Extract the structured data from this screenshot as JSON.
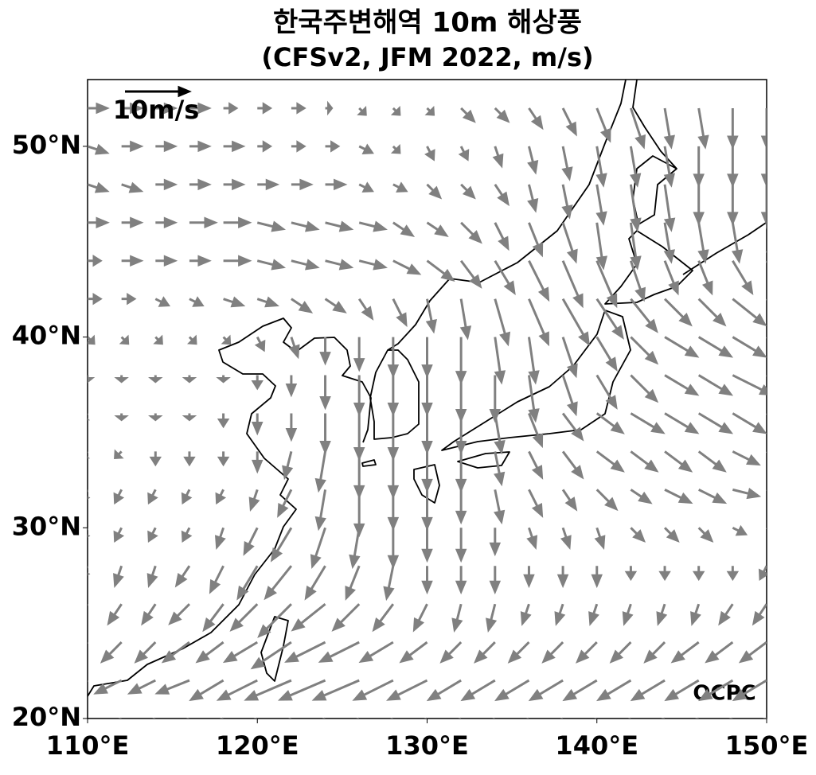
{
  "chart_data": {
    "type": "quiver",
    "title": "한국주변해역 10m 해상풍",
    "subtitle": "(CFSv2, JFM 2022, m/s)",
    "xlim": [
      110,
      150
    ],
    "ylim": [
      20,
      53.5
    ],
    "xticks": [
      {
        "value": 110,
        "label": "110°E"
      },
      {
        "value": 120,
        "label": "120°E"
      },
      {
        "value": 130,
        "label": "130°E"
      },
      {
        "value": 140,
        "label": "140°E"
      },
      {
        "value": 150,
        "label": "150°E"
      }
    ],
    "yticks": [
      {
        "value": 20,
        "label": "20°N"
      },
      {
        "value": 30,
        "label": "30°N"
      },
      {
        "value": 40,
        "label": "40°N"
      },
      {
        "value": 50,
        "label": "50°N"
      }
    ],
    "color": "#808080",
    "key": {
      "value": 10,
      "label": "10m/s"
    },
    "credit": "OCPC",
    "lon": [
      110,
      112,
      114,
      116,
      118,
      120,
      122,
      124,
      126,
      128,
      130,
      132,
      134,
      136,
      138,
      140,
      142,
      144,
      146,
      148,
      150
    ],
    "lat": [
      52,
      50,
      48,
      46,
      44,
      42,
      40,
      38,
      36,
      34,
      32,
      30,
      28,
      26,
      24,
      22,
      20
    ],
    "u": [
      [
        3,
        3,
        3,
        3,
        2,
        2,
        2,
        1,
        1,
        1,
        1,
        2,
        2,
        2,
        2,
        2,
        2,
        1,
        1,
        0,
        0
      ],
      [
        3,
        3,
        3,
        3,
        3,
        2,
        2,
        2,
        2,
        1,
        1,
        1,
        1,
        1,
        1,
        1,
        1,
        1,
        0,
        0,
        0
      ],
      [
        3,
        3,
        3,
        3,
        3,
        3,
        3,
        3,
        2,
        2,
        2,
        2,
        2,
        1,
        1,
        1,
        1,
        1,
        0,
        0,
        0
      ],
      [
        3,
        3,
        3,
        4,
        4,
        4,
        4,
        4,
        4,
        3,
        3,
        3,
        2,
        2,
        2,
        1,
        1,
        1,
        1,
        1,
        1
      ],
      [
        2,
        3,
        3,
        3,
        4,
        4,
        4,
        4,
        4,
        4,
        4,
        3,
        3,
        3,
        3,
        3,
        2,
        2,
        2,
        3,
        3
      ],
      [
        2,
        2,
        2,
        2,
        3,
        3,
        3,
        3,
        2,
        2,
        1,
        1,
        2,
        3,
        4,
        4,
        4,
        4,
        4,
        5,
        5
      ],
      [
        1,
        1,
        1,
        1,
        1,
        1,
        1,
        0,
        0,
        0,
        0,
        0,
        1,
        1,
        2,
        3,
        4,
        5,
        5,
        5,
        5
      ],
      [
        0,
        0,
        0,
        0,
        0,
        0,
        0,
        0,
        0,
        0,
        0,
        0,
        0,
        1,
        2,
        3,
        4,
        5,
        5,
        6,
        6
      ],
      [
        -1,
        0,
        0,
        0,
        0,
        0,
        0,
        0,
        0,
        0,
        0,
        0,
        1,
        2,
        3,
        4,
        5,
        5,
        5,
        5,
        5
      ],
      [
        -1,
        -1,
        0,
        0,
        0,
        0,
        -1,
        -1,
        0,
        0,
        0,
        0,
        1,
        2,
        3,
        4,
        4,
        4,
        4,
        4,
        4
      ],
      [
        -1,
        -1,
        -1,
        -1,
        -1,
        -1,
        -2,
        -1,
        0,
        0,
        0,
        0,
        1,
        2,
        2,
        3,
        3,
        4,
        4,
        4,
        4
      ],
      [
        -1,
        -1,
        -1,
        -1,
        -1,
        -2,
        -3,
        -2,
        -1,
        0,
        0,
        0,
        0,
        1,
        1,
        1,
        2,
        2,
        2,
        2,
        2
      ],
      [
        -1,
        -1,
        -1,
        -2,
        -2,
        -3,
        -4,
        -3,
        -2,
        -1,
        0,
        0,
        0,
        0,
        0,
        0,
        0,
        0,
        0,
        0,
        -1
      ],
      [
        -2,
        -2,
        -2,
        -3,
        -3,
        -4,
        -5,
        -5,
        -4,
        -3,
        -2,
        -1,
        -1,
        -1,
        -1,
        -1,
        -1,
        -1,
        -1,
        -2,
        -2
      ],
      [
        -3,
        -3,
        -3,
        -4,
        -4,
        -5,
        -6,
        -6,
        -6,
        -5,
        -4,
        -3,
        -3,
        -3,
        -3,
        -3,
        -3,
        -3,
        -4,
        -4,
        -4
      ],
      [
        -4,
        -4,
        -4,
        -5,
        -5,
        -6,
        -7,
        -7,
        -7,
        -6,
        -6,
        -5,
        -5,
        -5,
        -5,
        -5,
        -5,
        -5,
        -5,
        -5,
        -5
      ],
      [
        -5,
        -5,
        -5,
        -5,
        -6,
        -6,
        -7,
        -7,
        -7,
        -7,
        -7,
        -6,
        -6,
        -6,
        -6,
        -6,
        -6,
        -6,
        -6,
        -6,
        -6
      ]
    ],
    "v": [
      [
        0,
        0,
        0,
        0,
        0,
        0,
        0,
        0,
        -1,
        -1,
        -1,
        -2,
        -2,
        -3,
        -4,
        -5,
        -6,
        -6,
        -6,
        -6,
        -6
      ],
      [
        -1,
        0,
        0,
        0,
        0,
        0,
        0,
        0,
        -1,
        -1,
        -2,
        -2,
        -3,
        -4,
        -5,
        -6,
        -6,
        -6,
        -6,
        -6,
        -6
      ],
      [
        -1,
        -1,
        0,
        0,
        0,
        0,
        0,
        0,
        -1,
        -1,
        -2,
        -2,
        -3,
        -4,
        -5,
        -6,
        -7,
        -7,
        -6,
        -6,
        -6
      ],
      [
        0,
        0,
        0,
        0,
        0,
        -1,
        -1,
        -1,
        -1,
        -2,
        -2,
        -3,
        -4,
        -5,
        -6,
        -7,
        -7,
        -6,
        -6,
        -6,
        -6
      ],
      [
        0,
        0,
        0,
        0,
        0,
        -1,
        -1,
        -1,
        -1,
        -2,
        -3,
        -4,
        -5,
        -6,
        -7,
        -7,
        -6,
        -5,
        -5,
        -5,
        -5
      ],
      [
        0,
        0,
        -1,
        -1,
        -1,
        -1,
        -2,
        -2,
        -3,
        -4,
        -5,
        -6,
        -7,
        -7,
        -7,
        -6,
        -5,
        -4,
        -4,
        -4,
        -4
      ],
      [
        -1,
        -1,
        -1,
        -1,
        -1,
        -2,
        -3,
        -4,
        -5,
        -6,
        -6,
        -7,
        -7,
        -7,
        -6,
        -5,
        -4,
        -3,
        -3,
        -3,
        -3
      ],
      [
        -1,
        -1,
        -1,
        -1,
        -1,
        -2,
        -3,
        -5,
        -6,
        -6,
        -6,
        -7,
        -7,
        -7,
        -6,
        -5,
        -4,
        -3,
        -3,
        -3,
        -3
      ],
      [
        -1,
        -1,
        -1,
        -1,
        -2,
        -3,
        -4,
        -6,
        -7,
        -7,
        -6,
        -6,
        -6,
        -5,
        -4,
        -3,
        -3,
        -3,
        -3,
        -3,
        -3
      ],
      [
        -1,
        -1,
        -2,
        -2,
        -2,
        -3,
        -4,
        -6,
        -7,
        -7,
        -6,
        -6,
        -5,
        -4,
        -4,
        -3,
        -3,
        -3,
        -3,
        -2,
        -2
      ],
      [
        -2,
        -2,
        -2,
        -2,
        -2,
        -3,
        -4,
        -6,
        -7,
        -6,
        -6,
        -5,
        -5,
        -4,
        -3,
        -3,
        -2,
        -2,
        -2,
        -1,
        -1
      ],
      [
        -2,
        -2,
        -2,
        -2,
        -3,
        -4,
        -5,
        -6,
        -6,
        -6,
        -5,
        -5,
        -4,
        -3,
        -3,
        -3,
        -2,
        -2,
        -2,
        -1,
        -1
      ],
      [
        -2,
        -3,
        -3,
        -3,
        -4,
        -5,
        -5,
        -5,
        -5,
        -5,
        -4,
        -4,
        -4,
        -3,
        -3,
        -3,
        -2,
        -2,
        -2,
        -2,
        -2
      ],
      [
        -2,
        -3,
        -3,
        -3,
        -4,
        -4,
        -5,
        -4,
        -4,
        -4,
        -4,
        -4,
        -4,
        -3,
        -3,
        -3,
        -3,
        -3,
        -3,
        -3,
        -3
      ],
      [
        -2,
        -3,
        -3,
        -3,
        -3,
        -3,
        -4,
        -3,
        -3,
        -3,
        -3,
        -3,
        -3,
        -3,
        -3,
        -3,
        -3,
        -3,
        -3,
        -3,
        -3
      ],
      [
        -2,
        -2,
        -2,
        -2,
        -3,
        -3,
        -3,
        -3,
        -3,
        -3,
        -3,
        -3,
        -3,
        -3,
        -3,
        -3,
        -3,
        -3,
        -3,
        -3,
        -3
      ],
      [
        -2,
        -2,
        -2,
        -2,
        -2,
        -2,
        -3,
        -3,
        -3,
        -3,
        -3,
        -3,
        -3,
        -3,
        -3,
        -3,
        -3,
        -2,
        -2,
        -2,
        -2
      ]
    ]
  }
}
